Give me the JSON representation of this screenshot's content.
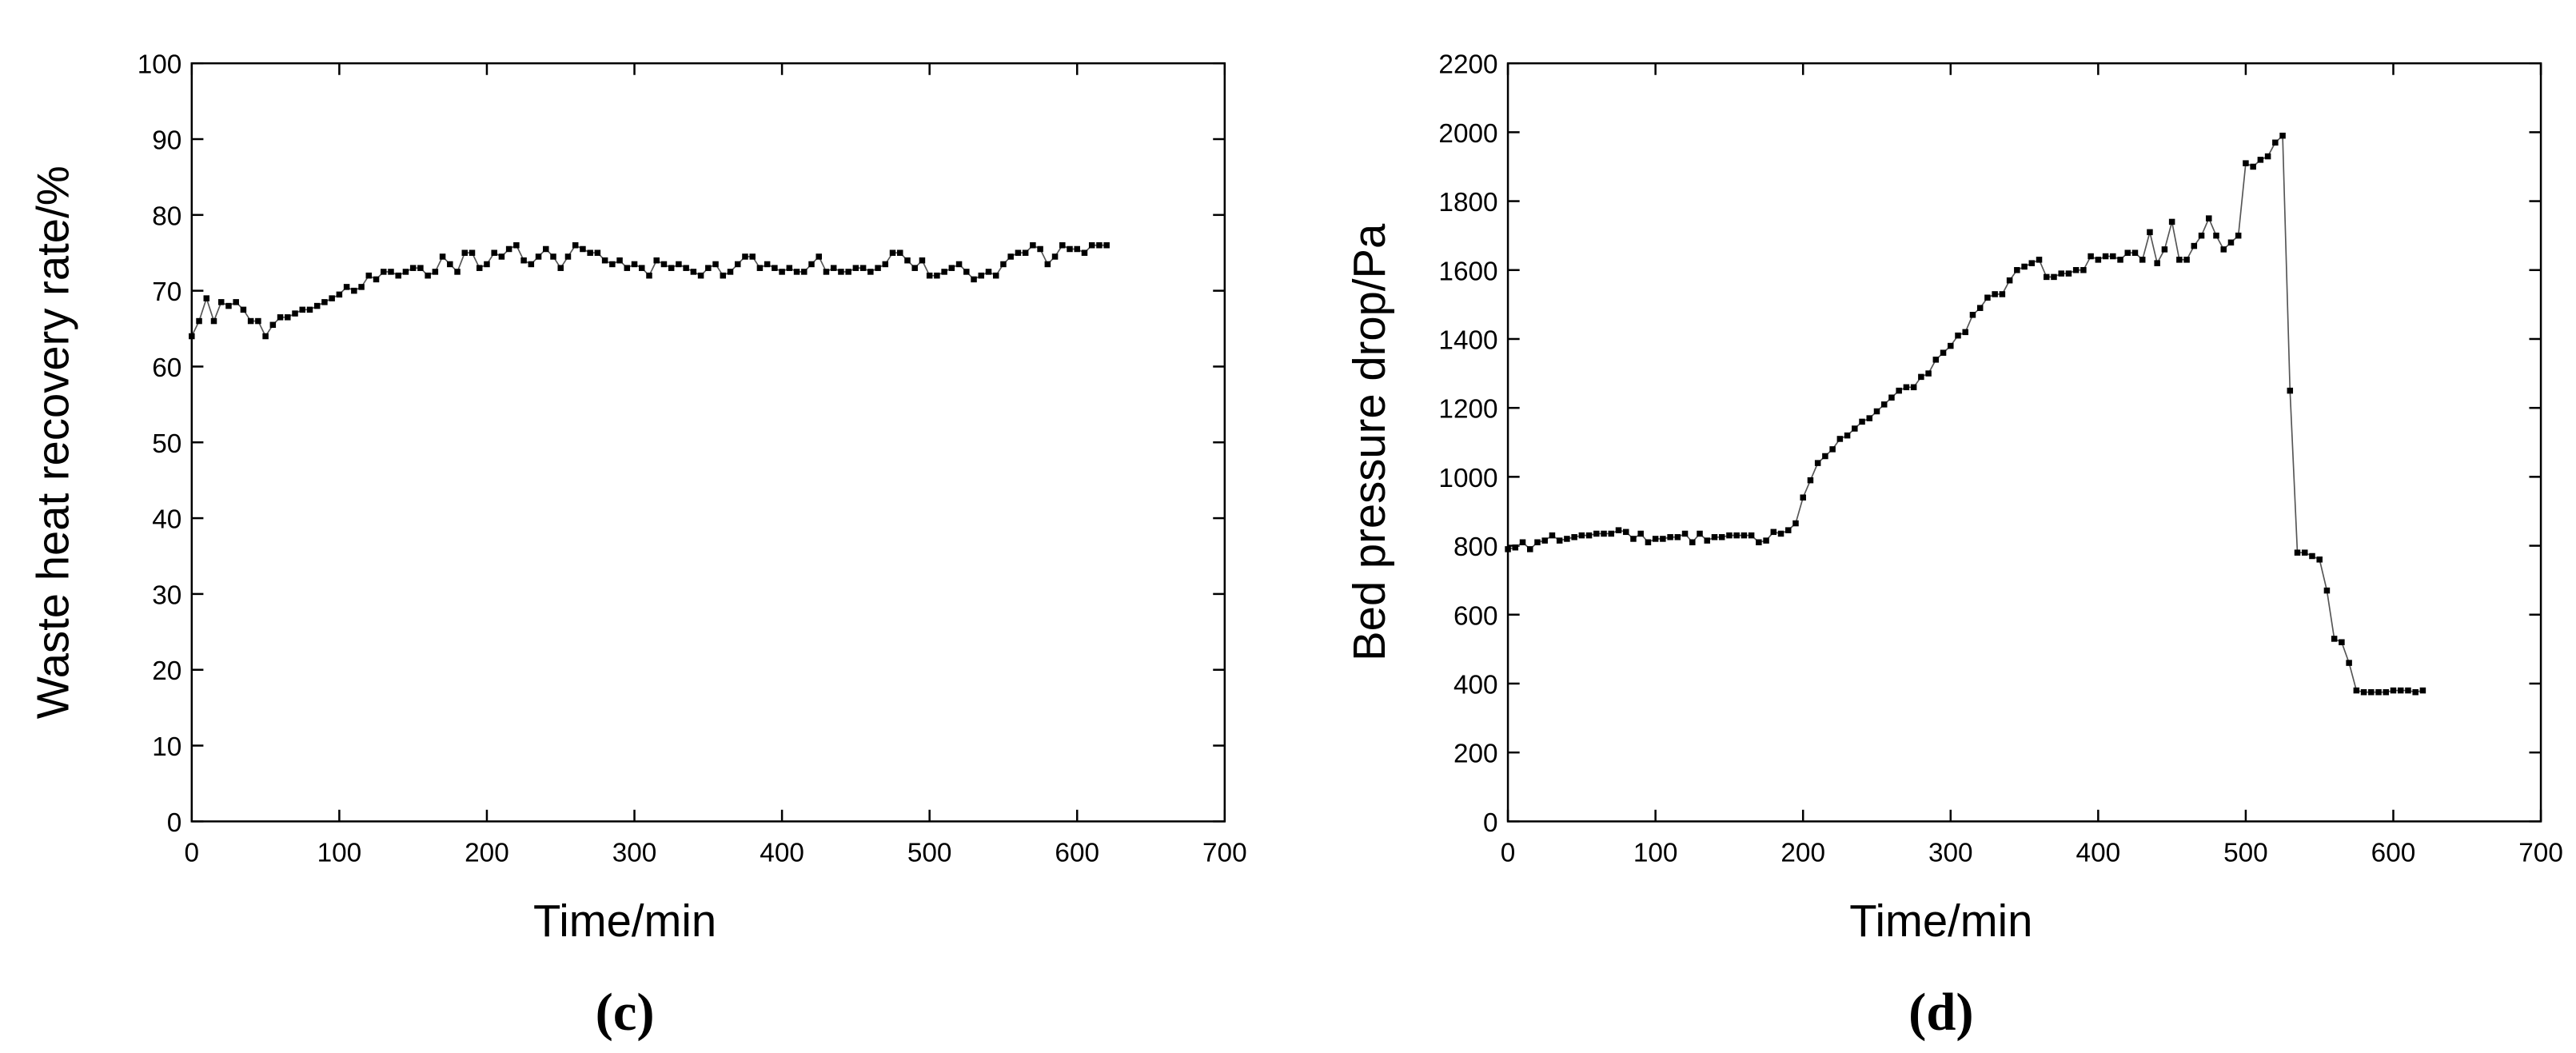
{
  "chart_data": [
    {
      "type": "line",
      "caption": "(c)",
      "xlabel": "Time/min",
      "ylabel": "Waste heat recovery rate/%",
      "xlim": [
        0,
        700
      ],
      "xticks": [
        0,
        100,
        200,
        300,
        400,
        500,
        600,
        700
      ],
      "ylim": [
        0,
        100
      ],
      "yticks": [
        0,
        10,
        20,
        30,
        40,
        50,
        60,
        70,
        80,
        90,
        100
      ],
      "marker": "square",
      "color": "#000000",
      "line_color": "#555555",
      "x": [
        0,
        5,
        10,
        15,
        20,
        25,
        30,
        35,
        40,
        45,
        50,
        55,
        60,
        65,
        70,
        75,
        80,
        85,
        90,
        95,
        100,
        105,
        110,
        115,
        120,
        125,
        130,
        135,
        140,
        145,
        150,
        155,
        160,
        165,
        170,
        175,
        180,
        185,
        190,
        195,
        200,
        205,
        210,
        215,
        220,
        225,
        230,
        235,
        240,
        245,
        250,
        255,
        260,
        265,
        270,
        275,
        280,
        285,
        290,
        295,
        300,
        305,
        310,
        315,
        320,
        325,
        330,
        335,
        340,
        345,
        350,
        355,
        360,
        365,
        370,
        375,
        380,
        385,
        390,
        395,
        400,
        405,
        410,
        415,
        420,
        425,
        430,
        435,
        440,
        445,
        450,
        455,
        460,
        465,
        470,
        475,
        480,
        485,
        490,
        495,
        500,
        505,
        510,
        515,
        520,
        525,
        530,
        535,
        540,
        545,
        550,
        555,
        560,
        565,
        570,
        575,
        580,
        585,
        590,
        595,
        600,
        605,
        610,
        615,
        620
      ],
      "values": [
        64,
        66,
        69,
        66,
        68.5,
        68,
        68.5,
        67.5,
        66,
        66,
        64,
        65.5,
        66.5,
        66.5,
        67,
        67.5,
        67.5,
        68,
        68.5,
        69,
        69.5,
        70.5,
        70,
        70.5,
        72,
        71.5,
        72.5,
        72.5,
        72,
        72.5,
        73,
        73,
        72,
        72.5,
        74.5,
        73.5,
        72.5,
        75,
        75,
        73,
        73.5,
        75,
        74.5,
        75.5,
        76,
        74,
        73.5,
        74.5,
        75.5,
        74.5,
        73,
        74.5,
        76,
        75.5,
        75,
        75,
        74,
        73.5,
        74,
        73,
        73.5,
        73,
        72,
        74,
        73.5,
        73,
        73.5,
        73,
        72.5,
        72,
        73,
        73.5,
        72,
        72.5,
        73.5,
        74.5,
        74.5,
        73,
        73.5,
        73,
        72.5,
        73,
        72.5,
        72.5,
        73.5,
        74.5,
        72.5,
        73,
        72.5,
        72.5,
        73,
        73,
        72.5,
        73,
        73.5,
        75,
        75,
        74,
        73,
        74,
        72,
        72,
        72.5,
        73,
        73.5,
        72.5,
        71.5,
        72,
        72.5,
        72,
        73.5,
        74.5,
        75,
        75,
        76,
        75.5,
        73.5,
        74.5,
        76,
        75.5,
        75.5,
        75,
        76,
        76,
        76
      ]
    },
    {
      "type": "line",
      "caption": "(d)",
      "xlabel": "Time/min",
      "ylabel": "Bed pressure drop/Pa",
      "xlim": [
        0,
        700
      ],
      "xticks": [
        0,
        100,
        200,
        300,
        400,
        500,
        600,
        700
      ],
      "ylim": [
        0,
        2200
      ],
      "yticks": [
        0,
        200,
        400,
        600,
        800,
        1000,
        1200,
        1400,
        1600,
        1800,
        2000,
        2200
      ],
      "marker": "square",
      "color": "#000000",
      "line_color": "#555555",
      "x": [
        0,
        5,
        10,
        15,
        20,
        25,
        30,
        35,
        40,
        45,
        50,
        55,
        60,
        65,
        70,
        75,
        80,
        85,
        90,
        95,
        100,
        105,
        110,
        115,
        120,
        125,
        130,
        135,
        140,
        145,
        150,
        155,
        160,
        165,
        170,
        175,
        180,
        185,
        190,
        195,
        200,
        205,
        210,
        215,
        220,
        225,
        230,
        235,
        240,
        245,
        250,
        255,
        260,
        265,
        270,
        275,
        280,
        285,
        290,
        295,
        300,
        305,
        310,
        315,
        320,
        325,
        330,
        335,
        340,
        345,
        350,
        355,
        360,
        365,
        370,
        375,
        380,
        385,
        390,
        395,
        400,
        405,
        410,
        415,
        420,
        425,
        430,
        435,
        440,
        445,
        450,
        455,
        460,
        465,
        470,
        475,
        480,
        485,
        490,
        495,
        500,
        505,
        510,
        515,
        520,
        525,
        530,
        535,
        540,
        545,
        550,
        555,
        560,
        565,
        570,
        575,
        580,
        585,
        590,
        595,
        600,
        605,
        610,
        615,
        620
      ],
      "values": [
        790,
        795,
        810,
        790,
        810,
        815,
        830,
        815,
        820,
        825,
        830,
        830,
        835,
        835,
        835,
        845,
        840,
        820,
        835,
        810,
        820,
        820,
        825,
        825,
        835,
        810,
        835,
        815,
        825,
        825,
        830,
        830,
        830,
        830,
        810,
        815,
        840,
        835,
        845,
        865,
        940,
        990,
        1040,
        1060,
        1080,
        1110,
        1120,
        1140,
        1160,
        1170,
        1190,
        1210,
        1230,
        1250,
        1260,
        1260,
        1290,
        1300,
        1340,
        1360,
        1380,
        1410,
        1420,
        1470,
        1490,
        1520,
        1530,
        1530,
        1570,
        1600,
        1610,
        1620,
        1630,
        1580,
        1580,
        1590,
        1590,
        1600,
        1600,
        1640,
        1630,
        1640,
        1640,
        1630,
        1650,
        1650,
        1630,
        1710,
        1620,
        1660,
        1740,
        1630,
        1630,
        1670,
        1700,
        1750,
        1700,
        1660,
        1680,
        1700,
        1910,
        1900,
        1920,
        1930,
        1970,
        1990,
        1250,
        780,
        780,
        770,
        760,
        670,
        530,
        520,
        460,
        380,
        375,
        375,
        375,
        375,
        380,
        380,
        380,
        375,
        380
      ]
    }
  ]
}
